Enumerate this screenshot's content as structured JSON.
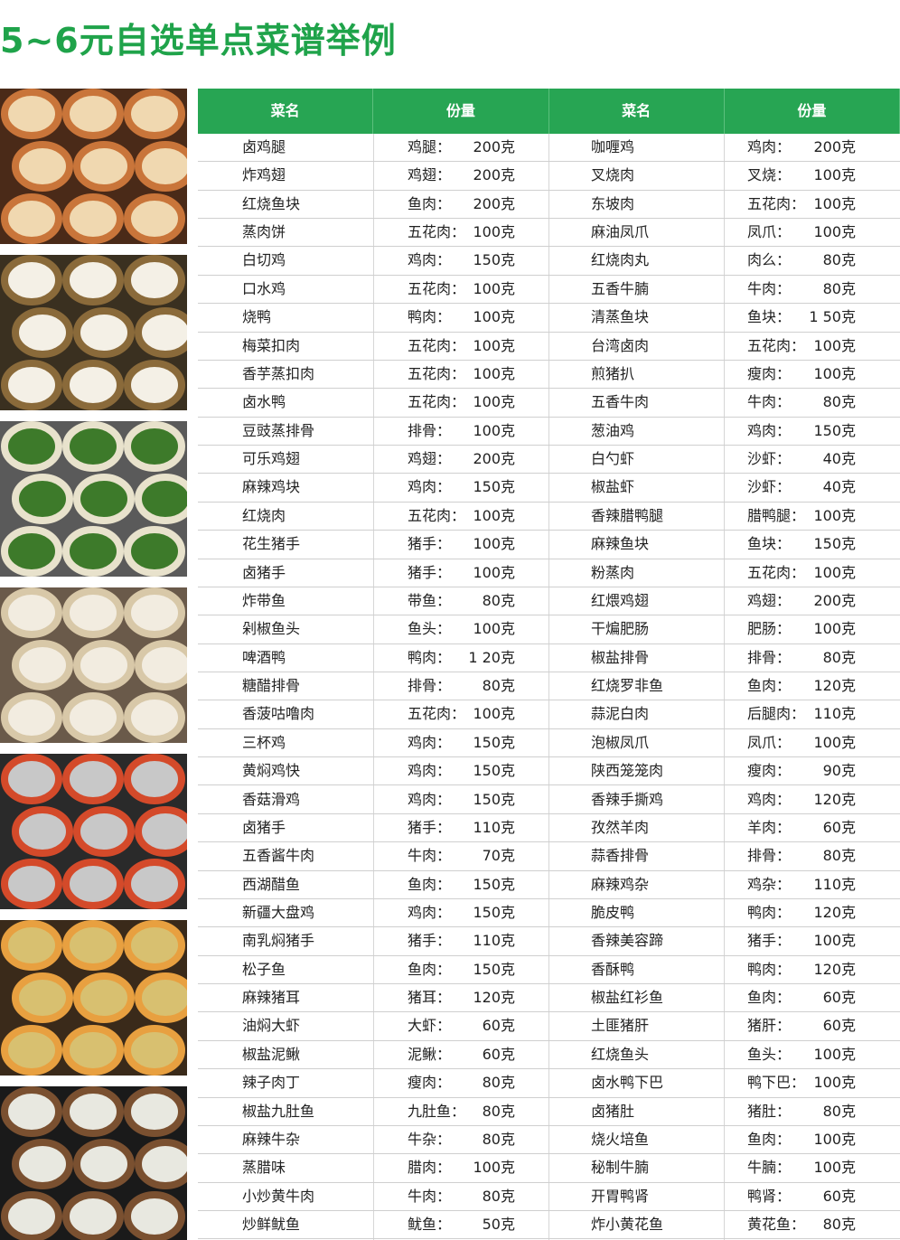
{
  "header": {
    "title": "5~6元自选单点菜谱举例"
  },
  "table": {
    "columns": [
      "菜名",
      "份量",
      "菜名",
      "份量"
    ],
    "rows": [
      [
        "卤鸡腿",
        "鸡腿：",
        "200克",
        "咖喱鸡",
        "鸡肉：",
        "200克"
      ],
      [
        "炸鸡翅",
        "鸡翅：",
        "200克",
        "叉烧肉",
        "叉烧：",
        "100克"
      ],
      [
        "红烧鱼块",
        "鱼肉：",
        "200克",
        "东坡肉",
        "五花肉：",
        "100克"
      ],
      [
        "蒸肉饼",
        "五花肉：",
        "100克",
        "麻油凤爪",
        "凤爪：",
        "100克"
      ],
      [
        "白切鸡",
        "鸡肉：",
        "150克",
        "红烧肉丸",
        "肉么：",
        "80克"
      ],
      [
        "口水鸡",
        "五花肉：",
        "100克",
        "五香牛腩",
        "牛肉：",
        "80克"
      ],
      [
        "烧鸭",
        "鸭肉：",
        "100克",
        "清蒸鱼块",
        "鱼块：",
        "1 50克"
      ],
      [
        "梅菜扣肉",
        "五花肉：",
        "100克",
        "台湾卤肉",
        "五花肉：",
        "100克"
      ],
      [
        "香芋蒸扣肉",
        "五花肉：",
        "100克",
        "煎猪扒",
        "瘦肉：",
        "100克"
      ],
      [
        "卤水鸭",
        "五花肉：",
        "100克",
        "五香牛肉",
        "牛肉：",
        "80克"
      ],
      [
        "豆豉蒸排骨",
        "排骨：",
        "100克",
        "葱油鸡",
        "鸡肉：",
        "150克"
      ],
      [
        "可乐鸡翅",
        "鸡翅：",
        "200克",
        "白勺虾",
        "沙虾：",
        "40克"
      ],
      [
        "麻辣鸡块",
        "鸡肉：",
        "150克",
        "椒盐虾",
        "沙虾：",
        "40克"
      ],
      [
        "红烧肉",
        "五花肉：",
        "100克",
        "香辣腊鸭腿",
        "腊鸭腿：",
        "100克"
      ],
      [
        "花生猪手",
        "猪手：",
        "100克",
        "麻辣鱼块",
        "鱼块：",
        "150克"
      ],
      [
        "卤猪手",
        "猪手：",
        "100克",
        "粉蒸肉",
        "五花肉：",
        "100克"
      ],
      [
        "炸带鱼",
        "带鱼：",
        "80克",
        "红煨鸡翅",
        "鸡翅：",
        "200克"
      ],
      [
        "剁椒鱼头",
        "鱼头：",
        "100克",
        "干煸肥肠",
        "肥肠：",
        "100克"
      ],
      [
        "啤酒鸭",
        "鸭肉：",
        "1 20克",
        "椒盐排骨",
        "排骨：",
        "80克"
      ],
      [
        "糖醋排骨",
        "排骨：",
        "80克",
        "红烧罗非鱼",
        "鱼肉：",
        "120克"
      ],
      [
        "香菠咕噜肉",
        "五花肉：",
        "100克",
        "蒜泥白肉",
        "后腿肉：",
        "110克"
      ],
      [
        "三杯鸡",
        "鸡肉：",
        "150克",
        "泡椒凤爪",
        "凤爪：",
        "100克"
      ],
      [
        "黄焖鸡快",
        "鸡肉：",
        "150克",
        "陕西笼笼肉",
        "瘦肉：",
        "90克"
      ],
      [
        "香菇滑鸡",
        "鸡肉：",
        "150克",
        "香辣手撕鸡",
        "鸡肉：",
        "120克"
      ],
      [
        "卤猪手",
        "猪手：",
        "110克",
        "孜然羊肉",
        "羊肉：",
        "60克"
      ],
      [
        "五香酱牛肉",
        "牛肉：",
        "70克",
        "蒜香排骨",
        "排骨：",
        "80克"
      ],
      [
        "西湖醋鱼",
        "鱼肉：",
        "150克",
        "麻辣鸡杂",
        "鸡杂：",
        "110克"
      ],
      [
        "新疆大盘鸡",
        "鸡肉：",
        "150克",
        "脆皮鸭",
        "鸭肉：",
        "120克"
      ],
      [
        "南乳焖猪手",
        "猪手：",
        "110克",
        "香辣美容蹄",
        "猪手：",
        "100克"
      ],
      [
        "松子鱼",
        "鱼肉：",
        "150克",
        "香酥鸭",
        "鸭肉：",
        "120克"
      ],
      [
        "麻辣猪耳",
        "猪耳：",
        "120克",
        "椒盐红衫鱼",
        "鱼肉：",
        "60克"
      ],
      [
        "油焖大虾",
        "大虾：",
        "60克",
        "土匪猪肝",
        "猪肝：",
        "60克"
      ],
      [
        "椒盐泥鳅",
        "泥鳅：",
        "60克",
        "红烧鱼头",
        "鱼头：",
        "100克"
      ],
      [
        "辣子肉丁",
        "瘦肉：",
        "80克",
        "卤水鸭下巴",
        "鸭下巴：",
        "100克"
      ],
      [
        "椒盐九肚鱼",
        "九肚鱼：",
        "80克",
        "卤猪肚",
        "猪肚：",
        "80克"
      ],
      [
        "麻辣牛杂",
        "牛杂：",
        "80克",
        "烧火培鱼",
        "鱼肉：",
        "100克"
      ],
      [
        "蒸腊味",
        "腊肉：",
        "100克",
        "秘制牛腩",
        "牛腩：",
        "100克"
      ],
      [
        "小炒黄牛肉",
        "牛肉：",
        "80克",
        "开胃鸭肾",
        "鸭肾：",
        "60克"
      ],
      [
        "炒鲜鱿鱼",
        "鱿鱼：",
        "50克",
        "炸小黄花鱼",
        "黄花鱼：",
        "80克"
      ]
    ]
  }
}
